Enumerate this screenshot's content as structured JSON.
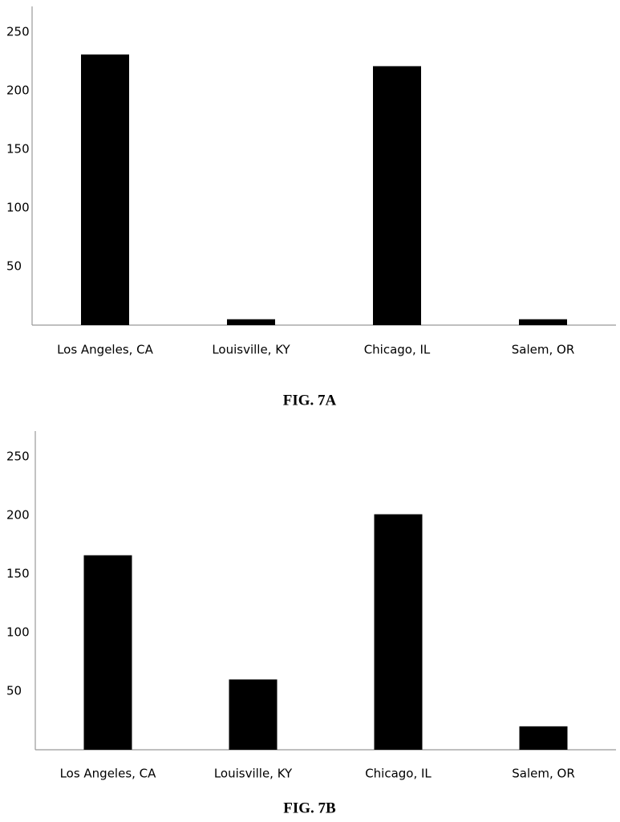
{
  "chart_data": [
    {
      "type": "bar",
      "title": "FIG. 7A",
      "categories": [
        "Los Angeles, CA",
        "Louisville, KY",
        "Chicago, IL",
        "Salem, OR"
      ],
      "values": [
        231,
        5,
        221,
        5
      ],
      "color": "#000000",
      "ylim": [
        0,
        272
      ],
      "yticks": [
        50,
        100,
        150,
        200,
        250
      ],
      "grid": false
    },
    {
      "type": "bar",
      "title": "FIG. 7B",
      "categories": [
        "Los Angeles, CA",
        "Louisville, KY",
        "Chicago, IL",
        "Salem, OR"
      ],
      "values": [
        166,
        60,
        201,
        20
      ],
      "color": "#000000",
      "ylim": [
        0,
        272
      ],
      "yticks": [
        50,
        100,
        150,
        200,
        250
      ],
      "grid": false
    }
  ]
}
